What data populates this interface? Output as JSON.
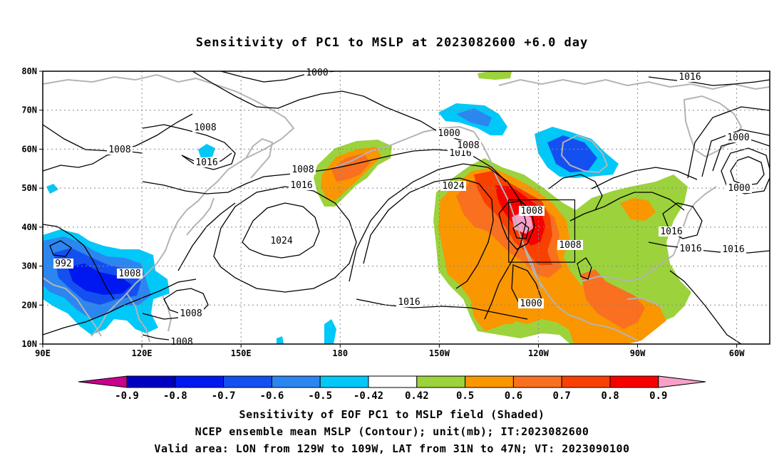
{
  "title": "Sensitivity of PC1 to MSLP at 2023082600 +6.0 day",
  "lat_labels": [
    "80N",
    "70N",
    "60N",
    "50N",
    "40N",
    "30N",
    "20N",
    "10N"
  ],
  "lon_labels": [
    "90E",
    "120E",
    "150E",
    "180",
    "150W",
    "120W",
    "90W",
    "60W"
  ],
  "domain": {
    "lon_min": 90,
    "lon_max": 310,
    "lat_min": 10,
    "lat_max": 80
  },
  "valid_box": {
    "lon_from": "129W",
    "lon_to": "109W",
    "lat_from": "31N",
    "lat_to": "47N"
  },
  "contour_labels": [
    "1000",
    "1008",
    "1008",
    "1016",
    "1000",
    "1016",
    "1008",
    "1016",
    "1024",
    "1000",
    "1008",
    "1016",
    "1024",
    "1008",
    "1008",
    "1016",
    "1000",
    "992",
    "1016",
    "1016",
    "1008",
    "1016",
    "1008",
    "1000",
    "1008"
  ],
  "colorbar": {
    "labels": [
      "-0.9",
      "-0.8",
      "-0.7",
      "-0.6",
      "-0.5",
      "-0.42",
      "0.42",
      "0.5",
      "0.6",
      "0.7",
      "0.8",
      "0.9"
    ],
    "colors": {
      "lt_-0.9": "#c8008c",
      "neg_0.9_0.8": "#0000c0",
      "neg_0.8_0.7": "#0018f0",
      "neg_0.7_0.6": "#1450f0",
      "neg_0.6_0.5": "#2c86f0",
      "neg_0.5_0.42": "#00c8f8",
      "neutral": "#ffffff",
      "pos_0.42_0.5": "#9cd23c",
      "pos_0.5_0.6": "#fa9600",
      "pos_0.6_0.7": "#f87020",
      "pos_0.7_0.8": "#f84000",
      "pos_0.8_0.9": "#f80000",
      "gt_0.9": "#f8a0c8"
    }
  },
  "captions": [
    "Sensitivity of EOF PC1 to MSLP field (Shaded)",
    "NCEP ensemble mean MSLP (Contour); unit(mb); IT:2023082600",
    "Valid area: LON from 129W to 109W, LAT from 31N to 47N; VT: 2023090100"
  ]
}
